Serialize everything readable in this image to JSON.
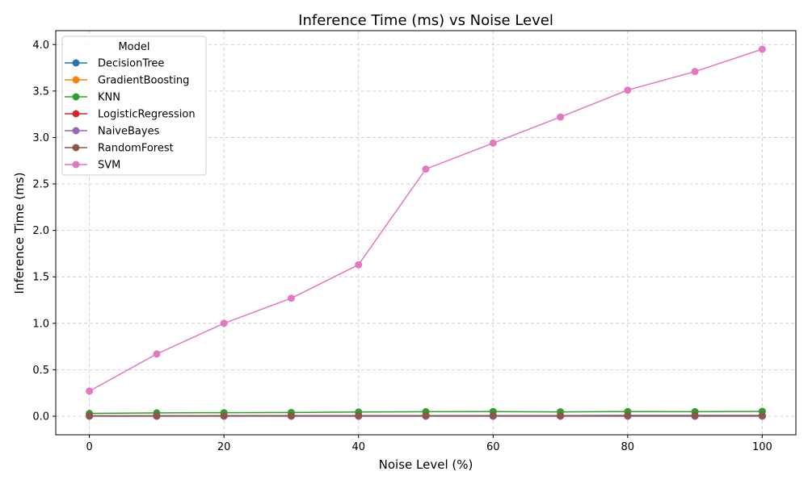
{
  "chart_data": {
    "type": "line",
    "title": "Inference Time (ms) vs Noise Level",
    "xlabel": "Noise Level (%)",
    "ylabel": "Inference Time (ms)",
    "x": [
      0,
      10,
      20,
      30,
      40,
      50,
      60,
      70,
      80,
      90,
      100
    ],
    "xlim": [
      -5,
      105
    ],
    "ylim": [
      -0.2,
      4.15
    ],
    "xticks": [
      0,
      20,
      40,
      60,
      80,
      100
    ],
    "xtick_labels": [
      "0",
      "20",
      "40",
      "60",
      "80",
      "100"
    ],
    "yticks": [
      0.0,
      0.5,
      1.0,
      1.5,
      2.0,
      2.5,
      3.0,
      3.5,
      4.0
    ],
    "ytick_labels": [
      "0.0",
      "0.5",
      "1.0",
      "1.5",
      "2.0",
      "2.5",
      "3.0",
      "3.5",
      "4.0"
    ],
    "grid": true,
    "legend_title": "Model",
    "legend_position": "top-left",
    "series": [
      {
        "name": "DecisionTree",
        "color": "#1f77b4",
        "values": [
          0.001,
          0.001,
          0.001,
          0.001,
          0.001,
          0.001,
          0.001,
          0.001,
          0.001,
          0.001,
          0.001
        ]
      },
      {
        "name": "GradientBoosting",
        "color": "#ff7f0e",
        "values": [
          0.003,
          0.003,
          0.003,
          0.003,
          0.003,
          0.003,
          0.003,
          0.003,
          0.003,
          0.003,
          0.003
        ]
      },
      {
        "name": "KNN",
        "color": "#2ca02c",
        "values": [
          0.03,
          0.035,
          0.038,
          0.04,
          0.045,
          0.048,
          0.05,
          0.047,
          0.05,
          0.048,
          0.052
        ]
      },
      {
        "name": "LogisticRegression",
        "color": "#d62728",
        "values": [
          0.001,
          0.001,
          0.001,
          0.001,
          0.001,
          0.001,
          0.001,
          0.001,
          0.001,
          0.001,
          0.001
        ]
      },
      {
        "name": "NaiveBayes",
        "color": "#9467bd",
        "values": [
          0.002,
          0.002,
          0.002,
          0.002,
          0.002,
          0.002,
          0.002,
          0.002,
          0.002,
          0.002,
          0.002
        ]
      },
      {
        "name": "RandomForest",
        "color": "#8c564b",
        "values": [
          0.005,
          0.005,
          0.006,
          0.006,
          0.007,
          0.007,
          0.007,
          0.007,
          0.008,
          0.008,
          0.008
        ]
      },
      {
        "name": "SVM",
        "color": "#e377c2",
        "values": [
          0.27,
          0.67,
          1.0,
          1.27,
          1.63,
          2.66,
          2.94,
          3.22,
          3.51,
          3.71,
          3.95
        ]
      }
    ]
  }
}
